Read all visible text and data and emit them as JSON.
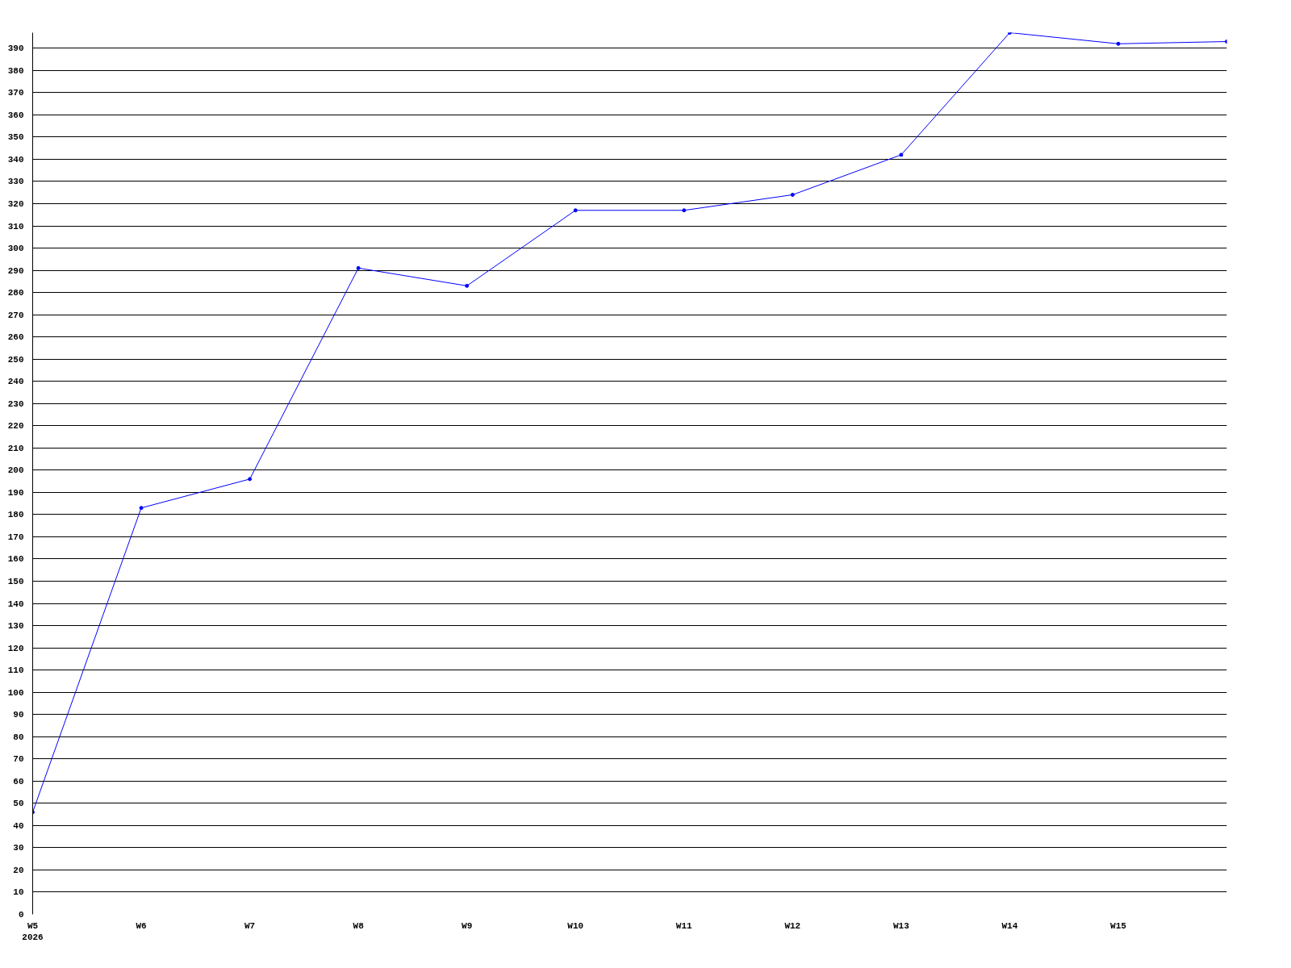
{
  "chart_data": {
    "type": "line",
    "categories": [
      "W5\n2026",
      "W6",
      "W7",
      "W8",
      "W9",
      "W10",
      "W11",
      "W12",
      "W13",
      "W14",
      "W15",
      null
    ],
    "series": [
      {
        "color": "#0000ff",
        "values": [
          46,
          183,
          196,
          291,
          283,
          317,
          317,
          324,
          342,
          397,
          392,
          393
        ]
      }
    ],
    "ylim": [
      0,
      397
    ],
    "yticks": [
      0,
      10,
      20,
      30,
      40,
      50,
      60,
      70,
      80,
      90,
      100,
      110,
      120,
      130,
      140,
      150,
      160,
      170,
      180,
      190,
      200,
      210,
      220,
      230,
      240,
      250,
      260,
      270,
      280,
      290,
      300,
      310,
      320,
      330,
      340,
      350,
      360,
      370,
      380,
      390
    ],
    "grid": "y",
    "marker": "circle",
    "line_style": "solid"
  }
}
